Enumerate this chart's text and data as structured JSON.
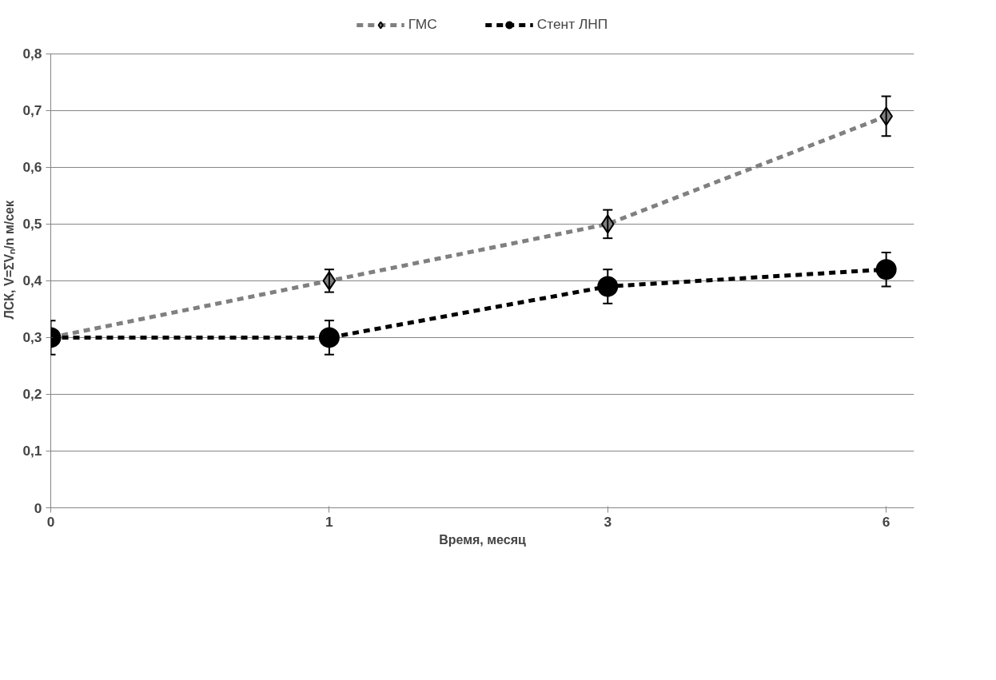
{
  "chart_data": {
    "type": "line",
    "xlabel": "Время, месяц",
    "ylabel": "ЛСК, V=ΣVₙ/n  м/сек",
    "categories": [
      "0",
      "1",
      "3",
      "6"
    ],
    "series": [
      {
        "name": "ГМС",
        "color": "#808080",
        "marker": "diamond",
        "values": [
          0.3,
          0.4,
          0.5,
          0.69
        ],
        "errors": [
          null,
          0.02,
          0.025,
          0.035
        ]
      },
      {
        "name": "Стент ЛНП",
        "color": "#000000",
        "marker": "circle",
        "values": [
          0.3,
          0.3,
          0.39,
          0.42
        ],
        "errors": [
          0.03,
          0.03,
          0.03,
          0.03
        ]
      }
    ],
    "ylim": [
      0,
      0.8
    ],
    "yticks": [
      {
        "value": 0,
        "label": "0"
      },
      {
        "value": 0.1,
        "label": "0,1"
      },
      {
        "value": 0.2,
        "label": "0,2"
      },
      {
        "value": 0.3,
        "label": "0,3"
      },
      {
        "value": 0.4,
        "label": "0,4"
      },
      {
        "value": 0.5,
        "label": "0,5"
      },
      {
        "value": 0.6,
        "label": "0,6"
      },
      {
        "value": 0.7,
        "label": "0,7"
      },
      {
        "value": 0.8,
        "label": "0,8"
      }
    ],
    "grid": "y",
    "legend": "top",
    "line_style": "dashed"
  }
}
